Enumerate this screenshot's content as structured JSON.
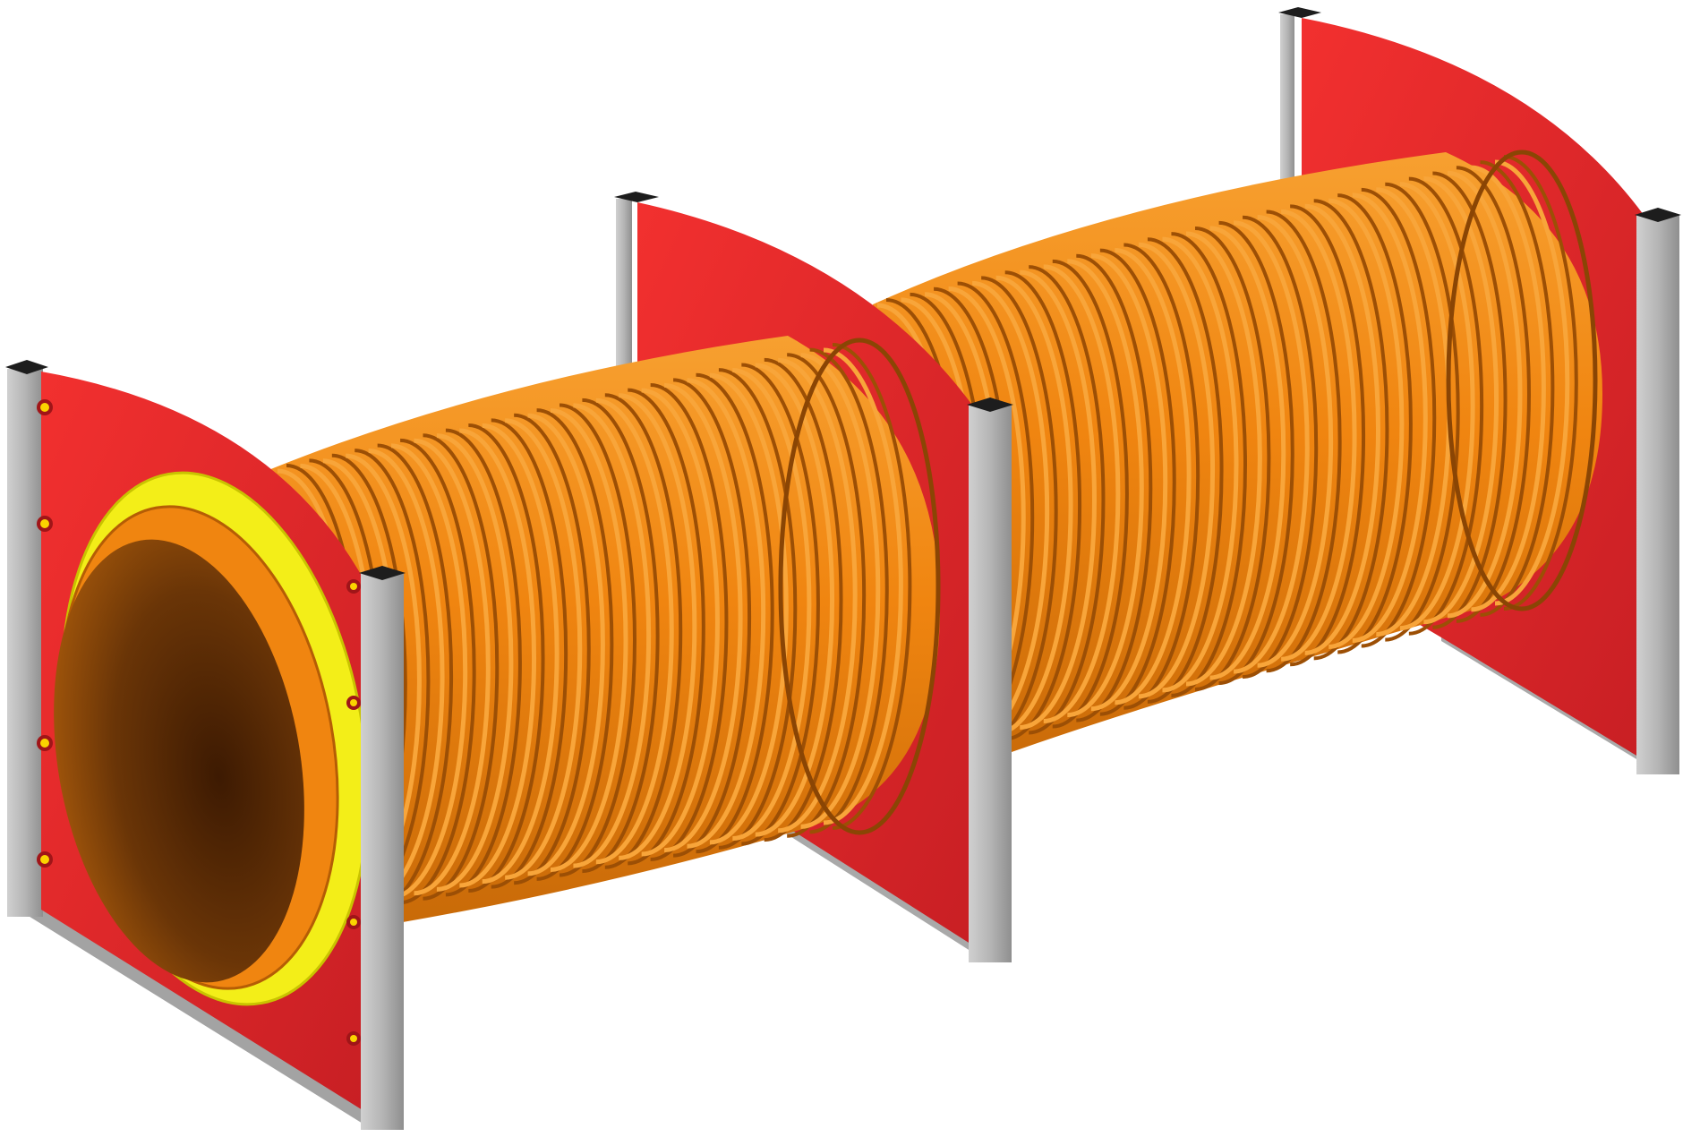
{
  "scene": {
    "subject": "playground-crawl-tunnel",
    "colors": {
      "panel": "#e8262b",
      "panel_shadow": "#b81d22",
      "tube": "#f0820f",
      "tube_dark": "#a85406",
      "tube_inner": "#6b3506",
      "ring": "#f4ee1a",
      "post": "#b9b9b9",
      "post_dark": "#8d8d8d",
      "cap": "#1d1d1d",
      "bolt": "#fbd400"
    },
    "tube_segments": 2,
    "support_frames": 3
  }
}
